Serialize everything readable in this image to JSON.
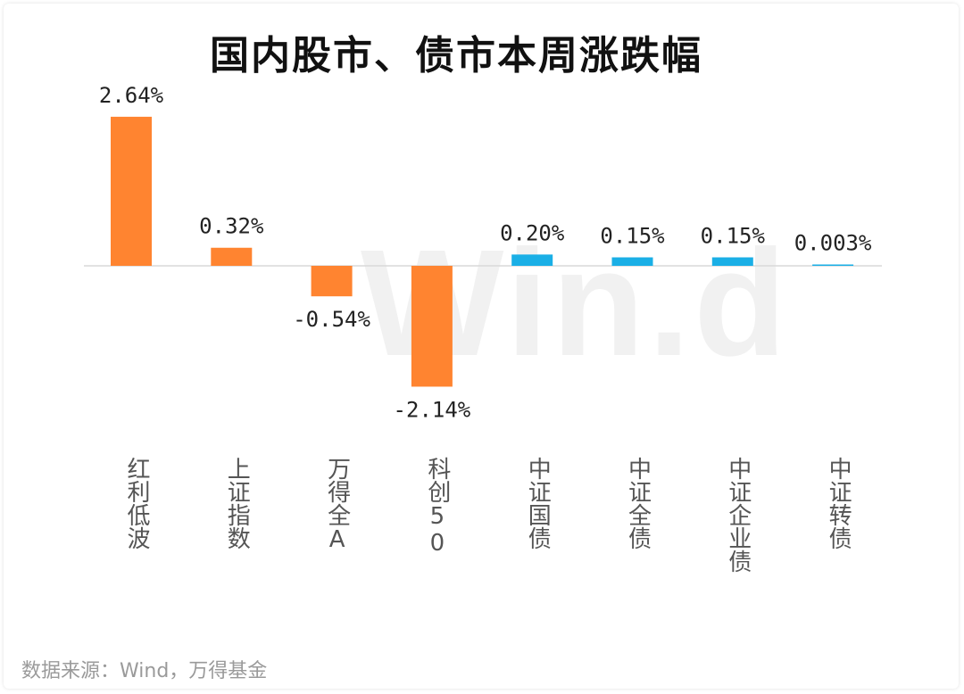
{
  "chart_data": {
    "type": "bar",
    "title": "国内股市、债市本周涨跌幅",
    "categories": [
      "红利低波",
      "上证指数",
      "万得全A",
      "科创50",
      "中证国债",
      "中证全债",
      "中证企业债",
      "中证转债"
    ],
    "values": [
      2.64,
      0.32,
      -0.54,
      -2.14,
      0.2,
      0.15,
      0.15,
      0.003
    ],
    "value_labels": [
      "2.64%",
      "0.32%",
      "-0.54%",
      "-2.14%",
      "0.20%",
      "0.15%",
      "0.15%",
      "0.003%"
    ],
    "colors": [
      "#FF8430",
      "#FF8430",
      "#FF8430",
      "#FF8430",
      "#1AAFE6",
      "#1AAFE6",
      "#1AAFE6",
      "#1AAFE6"
    ],
    "ylim": [
      -2.5,
      2.8
    ],
    "grid": false,
    "legend": "none"
  },
  "watermark": "Win.d",
  "source": "数据来源：Wind，万得基金"
}
